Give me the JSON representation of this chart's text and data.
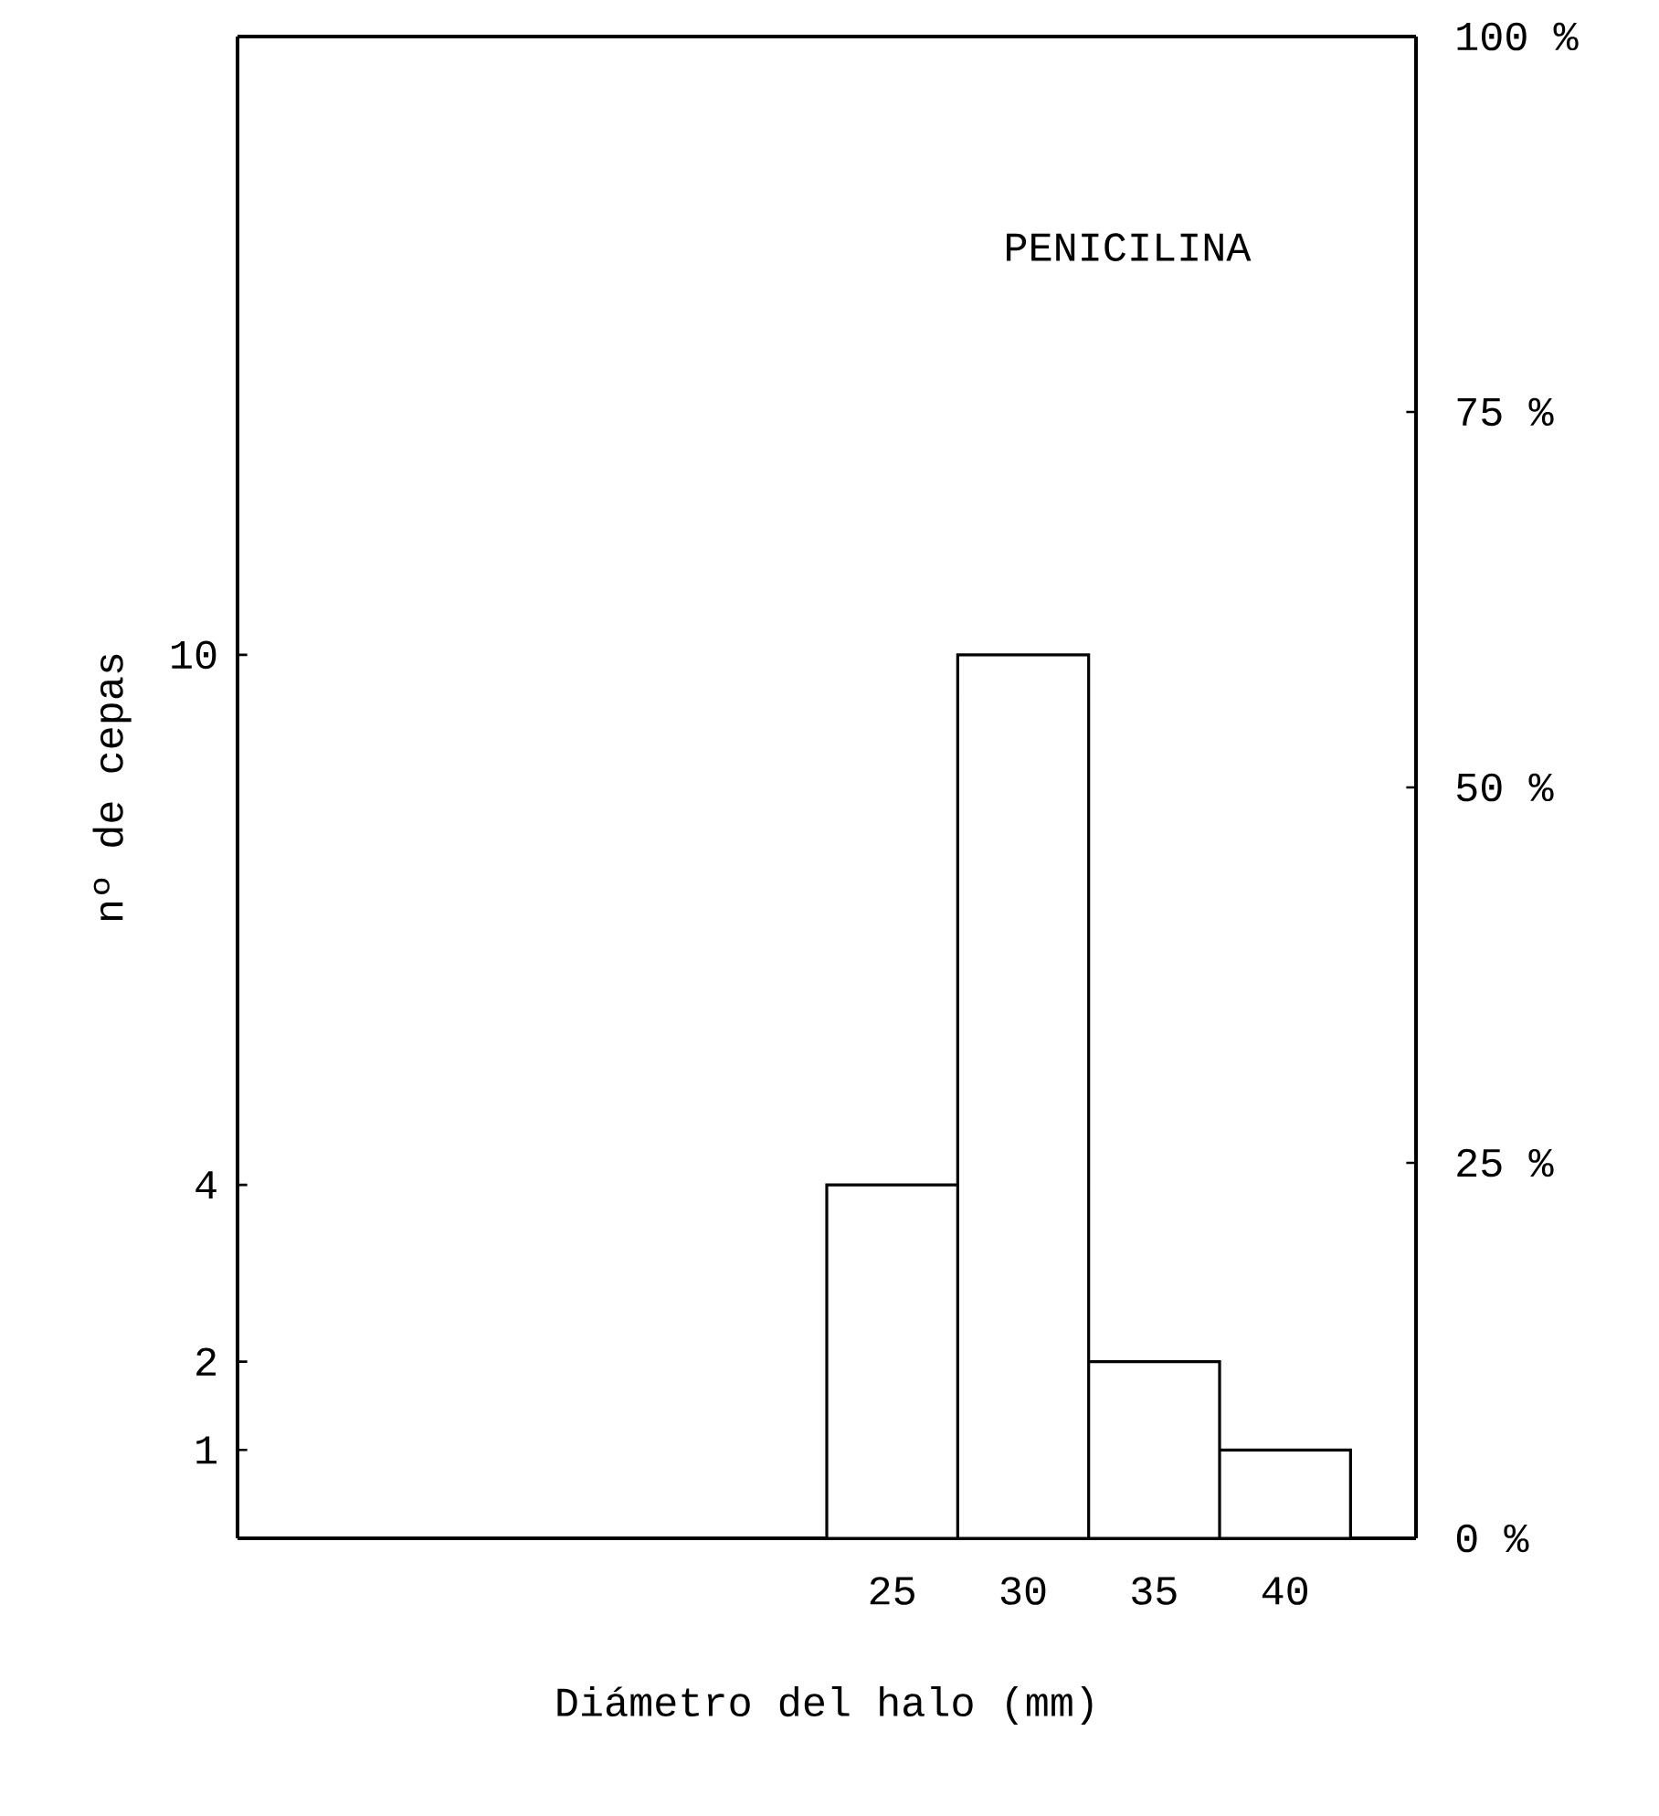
{
  "chart_data": {
    "type": "histogram",
    "title": "PENICILINA",
    "xlabel": "Diámetro del halo (mm)",
    "ylabel": "nº de cepas",
    "bins": [
      22.5,
      27.5,
      32.5,
      37.5,
      42.5
    ],
    "values": [
      4,
      10,
      2,
      1
    ],
    "color": "#ffffff",
    "xlim": [
      0,
      45
    ],
    "xticks": [
      25,
      30,
      35,
      40
    ],
    "ylim": [
      0,
      17
    ],
    "yticks": [
      1,
      2,
      4,
      10
    ],
    "y2lim": [
      0,
      100
    ],
    "y2ticks": [
      {
        "value": 0,
        "label": "0 %"
      },
      {
        "value": 25,
        "label": "25 %"
      },
      {
        "value": 50,
        "label": "50 %"
      },
      {
        "value": 75,
        "label": "75 %"
      },
      {
        "value": 100,
        "label": "100 %"
      }
    ],
    "grid": false
  }
}
